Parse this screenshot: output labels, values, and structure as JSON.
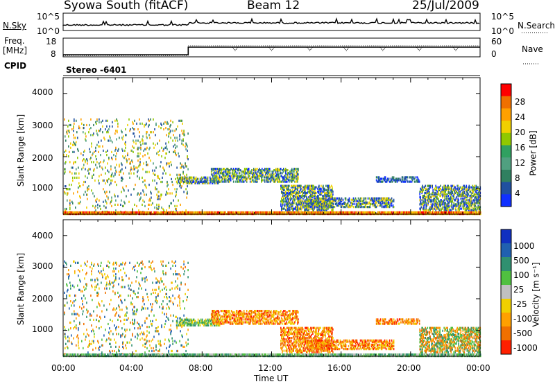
{
  "header": {
    "station": "Syowa South (fitACF)",
    "beam": "Beam 12",
    "date": "25/Jul/2009"
  },
  "top_panels": {
    "nsky_label": "N.Sky",
    "nsky_ticks": [
      "10^5",
      "10^0"
    ],
    "nsearch_label": "N.Search",
    "nsearch_ticks": [
      "10^5",
      "10^0"
    ],
    "freq_label": "Freq.",
    "freq_unit": "[MHz]",
    "freq_ticks": [
      "18",
      "8"
    ],
    "nave_label": "Nave",
    "nave_ticks": [
      "60",
      "0"
    ],
    "cpid_label": "CPID",
    "cpid_value": "Stereo -6401"
  },
  "colorbars": {
    "power": {
      "label": "Power [dB]",
      "ticks": [
        "28",
        "24",
        "20",
        "16",
        "12",
        "8",
        "4"
      ],
      "colors": [
        "#ff0000",
        "#f07000",
        "#ffa000",
        "#f0d000",
        "#90c800",
        "#30a060",
        "#50a080",
        "#308060",
        "#2050a0",
        "#1030ff"
      ]
    },
    "velocity": {
      "label": "Velocity [m s⁻¹]",
      "ticks": [
        "1000",
        "500",
        "100",
        "25",
        "-25",
        "-100",
        "-500",
        "-1000"
      ],
      "colors": [
        "#1030c0",
        "#2060b0",
        "#309070",
        "#50c040",
        "#c0c0c0",
        "#f0d000",
        "#ffa000",
        "#f07000",
        "#ff2000"
      ]
    }
  },
  "x_axis": {
    "label": "Time UT",
    "ticks": [
      "00:00",
      "04:00",
      "08:00",
      "12:00",
      "16:00",
      "20:00",
      "00:00"
    ]
  },
  "y_axis": {
    "label": "Slant Range [km]",
    "ticks": [
      "4000",
      "3000",
      "2000",
      "1000"
    ]
  },
  "chart_data": [
    {
      "type": "heatmap",
      "name": "power",
      "xlabel": "Time UT",
      "ylabel": "Slant Range [km]",
      "xlim": [
        0,
        24
      ],
      "ylim": [
        180,
        4500
      ],
      "colorbar_label": "Power [dB]",
      "colorbar_range": [
        0,
        32
      ],
      "echo_regions": [
        {
          "t": [
            0.0,
            7.2
          ],
          "r": [
            200,
            3200
          ],
          "level": "scattered"
        },
        {
          "t": [
            6.5,
            9.0
          ],
          "r": [
            1150,
            1350
          ],
          "level": "moderate"
        },
        {
          "t": [
            8.5,
            13.5
          ],
          "r": [
            1200,
            1650
          ],
          "level": "strong"
        },
        {
          "t": [
            12.5,
            15.5
          ],
          "r": [
            300,
            1100
          ],
          "level": "moderate"
        },
        {
          "t": [
            14.0,
            19.0
          ],
          "r": [
            400,
            700
          ],
          "level": "moderate"
        },
        {
          "t": [
            18.0,
            20.5
          ],
          "r": [
            1200,
            1350
          ],
          "level": "weak"
        },
        {
          "t": [
            20.5,
            24.0
          ],
          "r": [
            300,
            1100
          ],
          "level": "moderate"
        },
        {
          "t": [
            0.0,
            24.0
          ],
          "r": [
            180,
            250
          ],
          "level": "ground"
        }
      ]
    },
    {
      "type": "heatmap",
      "name": "velocity",
      "xlabel": "Time UT",
      "ylabel": "Slant Range [km]",
      "xlim": [
        0,
        24
      ],
      "ylim": [
        180,
        4500
      ],
      "colorbar_label": "Velocity [m s⁻¹]",
      "colorbar_range": [
        -1000,
        1000
      ],
      "echo_regions": [
        {
          "t": [
            0.0,
            7.2
          ],
          "r": [
            200,
            3200
          ],
          "level": "scattered"
        },
        {
          "t": [
            6.5,
            9.0
          ],
          "r": [
            1150,
            1350
          ],
          "level": "positive"
        },
        {
          "t": [
            8.5,
            13.5
          ],
          "r": [
            1200,
            1650
          ],
          "level": "negative"
        },
        {
          "t": [
            12.5,
            15.5
          ],
          "r": [
            300,
            1100
          ],
          "level": "negative"
        },
        {
          "t": [
            14.0,
            19.0
          ],
          "r": [
            400,
            700
          ],
          "level": "negative"
        },
        {
          "t": [
            18.0,
            20.5
          ],
          "r": [
            1200,
            1350
          ],
          "level": "negative"
        },
        {
          "t": [
            20.5,
            24.0
          ],
          "r": [
            300,
            1100
          ],
          "level": "mixed"
        },
        {
          "t": [
            0.0,
            24.0
          ],
          "r": [
            180,
            250
          ],
          "level": "ground"
        }
      ]
    }
  ]
}
